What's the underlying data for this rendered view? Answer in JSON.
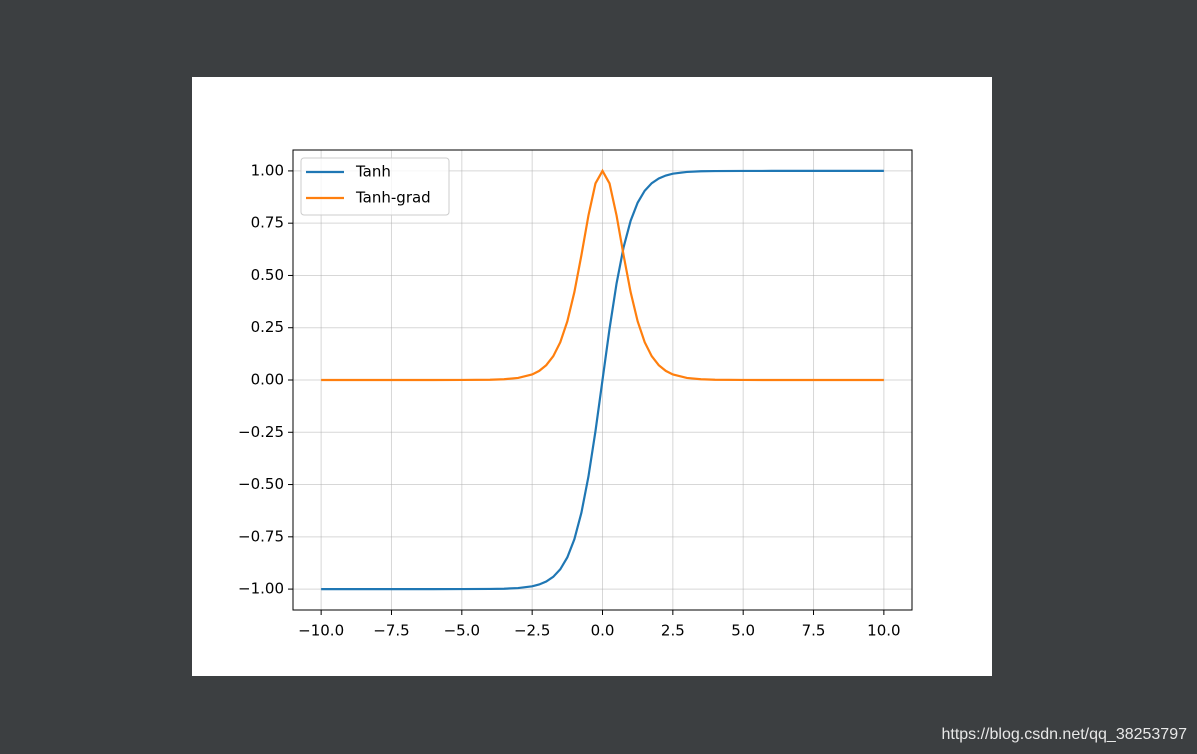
{
  "chart_data": {
    "type": "line",
    "x": [
      -10,
      -8,
      -6,
      -5,
      -4,
      -3.5,
      -3,
      -2.5,
      -2.25,
      -2,
      -1.75,
      -1.5,
      -1.25,
      -1,
      -0.75,
      -0.5,
      -0.25,
      0,
      0.25,
      0.5,
      0.75,
      1,
      1.25,
      1.5,
      1.75,
      2,
      2.25,
      2.5,
      3,
      3.5,
      4,
      5,
      6,
      8,
      10
    ],
    "series": [
      {
        "name": "Tanh",
        "color": "#1f77b4",
        "values": [
          -1,
          -1,
          -1,
          -0.9999,
          -0.9993,
          -0.9982,
          -0.9951,
          -0.9866,
          -0.978,
          -0.964,
          -0.9414,
          -0.9051,
          -0.8483,
          -0.7616,
          -0.6351,
          -0.4621,
          -0.2449,
          0,
          0.2449,
          0.4621,
          0.6351,
          0.7616,
          0.8483,
          0.9051,
          0.9414,
          0.964,
          0.978,
          0.9866,
          0.9951,
          0.9982,
          0.9993,
          0.9999,
          1,
          1,
          1
        ]
      },
      {
        "name": "Tanh-grad",
        "color": "#ff7f0e",
        "values": [
          0,
          0,
          0,
          0.0002,
          0.0013,
          0.0036,
          0.0099,
          0.0266,
          0.0435,
          0.0707,
          0.1138,
          0.1807,
          0.2804,
          0.42,
          0.5966,
          0.7864,
          0.94,
          1,
          0.94,
          0.7864,
          0.5966,
          0.42,
          0.2804,
          0.1807,
          0.1138,
          0.0707,
          0.0435,
          0.0266,
          0.0099,
          0.0036,
          0.0013,
          0.0002,
          0,
          0,
          0
        ]
      }
    ],
    "xlim": [
      -11,
      11
    ],
    "ylim": [
      -1.1,
      1.1
    ],
    "xticks": [
      {
        "value": -10,
        "label": "−10.0"
      },
      {
        "value": -7.5,
        "label": "−7.5"
      },
      {
        "value": -5,
        "label": "−5.0"
      },
      {
        "value": -2.5,
        "label": "−2.5"
      },
      {
        "value": 0,
        "label": "0.0"
      },
      {
        "value": 2.5,
        "label": "2.5"
      },
      {
        "value": 5,
        "label": "5.0"
      },
      {
        "value": 7.5,
        "label": "7.5"
      },
      {
        "value": 10,
        "label": "10.0"
      }
    ],
    "yticks": [
      {
        "value": -1,
        "label": "−1.00"
      },
      {
        "value": -0.75,
        "label": "−0.75"
      },
      {
        "value": -0.5,
        "label": "−0.50"
      },
      {
        "value": -0.25,
        "label": "−0.25"
      },
      {
        "value": 0,
        "label": "0.00"
      },
      {
        "value": 0.25,
        "label": "0.25"
      },
      {
        "value": 0.5,
        "label": "0.50"
      },
      {
        "value": 0.75,
        "label": "0.75"
      },
      {
        "value": 1,
        "label": "1.00"
      }
    ],
    "grid": true,
    "legend": "upper-left"
  },
  "watermark": "https://blog.csdn.net/qq_38253797"
}
